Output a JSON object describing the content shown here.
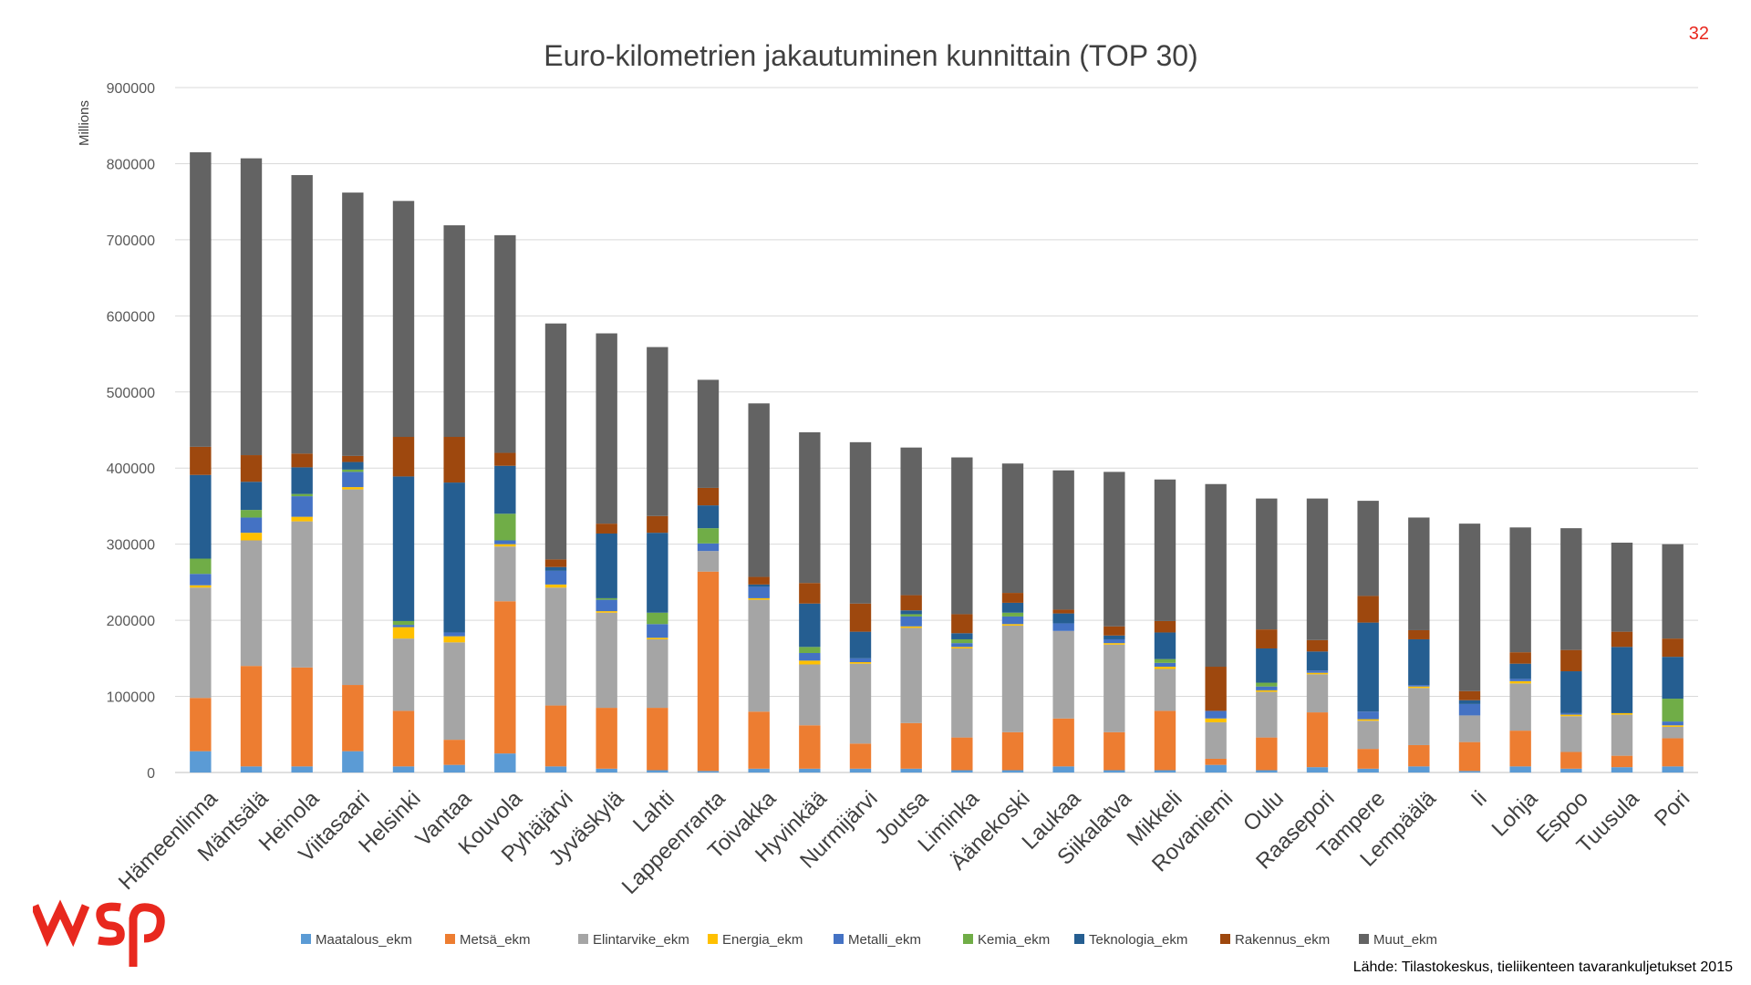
{
  "page": {
    "number": "32",
    "source": "Lähde: Tilastokeskus, tieliikenteen tavarankuljetukset 2015",
    "logo_text": "wsp"
  },
  "colors": {
    "Maatalous_ekm": "#5b9bd5",
    "Metsä_ekm": "#ed7d31",
    "Elintarvike_ekm": "#a5a5a5",
    "Energia_ekm": "#ffc000",
    "Metalli_ekm": "#4472c4",
    "Kemia_ekm": "#70ad47",
    "Teknologia_ekm": "#255e91",
    "Rakennus_ekm": "#9e480e",
    "Muut_ekm": "#636363",
    "grid": "#d9d9d9",
    "text": "#595959",
    "logo": "#e8281e"
  },
  "chart_data": {
    "type": "bar",
    "stacked": true,
    "title": "Euro-kilometrien jakautuminen kunnittain (TOP 30)",
    "ylabel": "Millions",
    "xlabel": "",
    "ylim": [
      0,
      900000
    ],
    "yticks": [
      "0",
      "100000",
      "200000",
      "300000",
      "400000",
      "500000",
      "600000",
      "700000",
      "800000",
      "900000"
    ],
    "grid": true,
    "legend_position": "bottom",
    "categories": [
      "Hämeenlinna",
      "Mäntsälä",
      "Heinola",
      "Viitasaari",
      "Helsinki",
      "Vantaa",
      "Kouvola",
      "Pyhäjärvi",
      "Jyväskylä",
      "Lahti",
      "Lappeenranta",
      "Toivakka",
      "Hyvinkää",
      "Nurmijärvi",
      "Joutsa",
      "Liminka",
      "Äänekoski",
      "Laukaa",
      "Siikalatva",
      "Mikkeli",
      "Rovaniemi",
      "Oulu",
      "Raasepori",
      "Tampere",
      "Lempäälä",
      "Ii",
      "Lohja",
      "Espoo",
      "Tuusula",
      "Pori"
    ],
    "series": [
      {
        "name": "Maatalous_ekm",
        "values": [
          28000,
          8000,
          8000,
          28000,
          8000,
          10000,
          25000,
          8000,
          5000,
          3000,
          2000,
          5000,
          5000,
          5000,
          5000,
          3000,
          3000,
          8000,
          3000,
          3000,
          10000,
          3000,
          7000,
          5000,
          8000,
          2000,
          8000,
          5000,
          7000,
          8000
        ]
      },
      {
        "name": "Metsä_ekm",
        "values": [
          70000,
          132000,
          130000,
          87000,
          73000,
          33000,
          200000,
          80000,
          80000,
          82000,
          262000,
          75000,
          57000,
          33000,
          60000,
          43000,
          50000,
          63000,
          50000,
          78000,
          8000,
          43000,
          72000,
          26000,
          28000,
          38000,
          47000,
          22000,
          15000,
          37000
        ]
      },
      {
        "name": "Elintarvike_ekm",
        "values": [
          145000,
          165000,
          192000,
          257000,
          95000,
          128000,
          72000,
          155000,
          125000,
          90000,
          27000,
          147000,
          80000,
          105000,
          125000,
          117000,
          140000,
          115000,
          115000,
          55000,
          48000,
          60000,
          50000,
          37000,
          75000,
          35000,
          62000,
          47000,
          54000,
          15000
        ]
      },
      {
        "name": "Energia_ekm",
        "values": [
          3000,
          10000,
          6000,
          3000,
          15000,
          8000,
          3000,
          4000,
          2000,
          2000,
          0,
          2000,
          5000,
          2000,
          2000,
          2000,
          2000,
          0,
          2000,
          3000,
          5000,
          2000,
          2000,
          2000,
          2000,
          0,
          3000,
          2000,
          2000,
          2000
        ]
      },
      {
        "name": "Metalli_ekm",
        "values": [
          15000,
          20000,
          27000,
          20000,
          3000,
          5000,
          5000,
          18000,
          15000,
          18000,
          10000,
          15000,
          10000,
          5000,
          13000,
          5000,
          10000,
          10000,
          5000,
          5000,
          10000,
          5000,
          3000,
          10000,
          2000,
          15000,
          3000,
          2000,
          0,
          5000
        ]
      },
      {
        "name": "Kemia_ekm",
        "values": [
          20000,
          10000,
          3000,
          3000,
          5000,
          0,
          35000,
          0,
          2000,
          15000,
          20000,
          0,
          8000,
          0,
          3000,
          5000,
          5000,
          0,
          0,
          5000,
          0,
          5000,
          0,
          0,
          0,
          0,
          0,
          0,
          0,
          30000
        ]
      },
      {
        "name": "Teknologia_ekm",
        "values": [
          110000,
          37000,
          35000,
          10000,
          190000,
          197000,
          63000,
          5000,
          85000,
          105000,
          30000,
          3000,
          57000,
          35000,
          5000,
          8000,
          13000,
          13000,
          5000,
          35000,
          0,
          45000,
          25000,
          117000,
          60000,
          5000,
          20000,
          55000,
          87000,
          55000
        ]
      },
      {
        "name": "Rakennus_ekm",
        "values": [
          37000,
          35000,
          18000,
          8000,
          52000,
          60000,
          17000,
          10000,
          13000,
          22000,
          23000,
          10000,
          27000,
          37000,
          20000,
          25000,
          13000,
          5000,
          12000,
          15000,
          58000,
          25000,
          15000,
          35000,
          12000,
          12000,
          15000,
          28000,
          20000,
          24000
        ]
      },
      {
        "name": "Muut_ekm",
        "values": [
          387000,
          390000,
          366000,
          346000,
          310000,
          278000,
          286000,
          310000,
          250000,
          222000,
          142000,
          228000,
          198000,
          212000,
          194000,
          206000,
          170000,
          183000,
          203000,
          186000,
          240000,
          172000,
          186000,
          125000,
          148000,
          220000,
          164000,
          160000,
          117000,
          124000
        ]
      }
    ]
  }
}
